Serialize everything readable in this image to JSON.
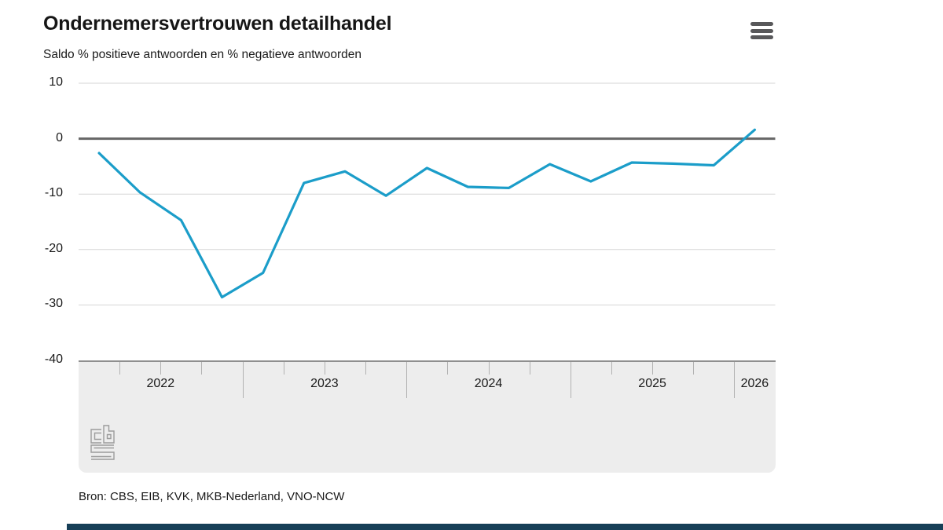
{
  "header": {
    "menu_icon": "hamburger-icon"
  },
  "footer": {
    "source": "Bron: CBS, EIB, KVK, MKB-Nederland, VNO-NCW",
    "logo": "cbs-logo"
  },
  "colors": {
    "line": "#1b9dc9",
    "zero_line": "#666666",
    "grid": "#d6d6d6",
    "axis_line": "#8f8f8f",
    "band_bg": "#ededed",
    "tick": "#b2b2b2",
    "text": "#1a1a1a",
    "menu_icon": "#58585a",
    "logo": "#9c9c9c",
    "bottom_bar": "#173f57"
  },
  "chart_data": {
    "type": "line",
    "title": "Ondernemersvertrouwen detailhandel",
    "subtitle": "Saldo % positieve antwoorden en % negatieve antwoorden",
    "x": [
      "2022-I",
      "2022-II",
      "2022-III",
      "2022-IV",
      "2023-I",
      "2023-II",
      "2023-III",
      "2023-IV",
      "2024-I",
      "2024-II",
      "2024-III",
      "2024-IV",
      "2025-I",
      "2025-II",
      "2025-III",
      "2025-IV",
      "2026-I"
    ],
    "values": [
      -2.6,
      -9.7,
      -14.7,
      -28.6,
      -24.2,
      -8.0,
      -5.9,
      -10.3,
      -5.3,
      -8.7,
      -8.9,
      -4.6,
      -7.7,
      -4.3,
      -4.5,
      -4.8,
      1.6
    ],
    "ylim": [
      -40,
      10
    ],
    "ytick_step": 10,
    "yticks": [
      10,
      0,
      -10,
      -20,
      -30,
      -40
    ],
    "years": [
      {
        "label": "2022",
        "quarters": 4
      },
      {
        "label": "2023",
        "quarters": 4
      },
      {
        "label": "2024",
        "quarters": 4
      },
      {
        "label": "2025",
        "quarters": 4
      },
      {
        "label": "2026",
        "quarters": 1
      }
    ],
    "grid": true,
    "zero_line": true,
    "legend": false,
    "line_color": "#1b9dc9"
  }
}
